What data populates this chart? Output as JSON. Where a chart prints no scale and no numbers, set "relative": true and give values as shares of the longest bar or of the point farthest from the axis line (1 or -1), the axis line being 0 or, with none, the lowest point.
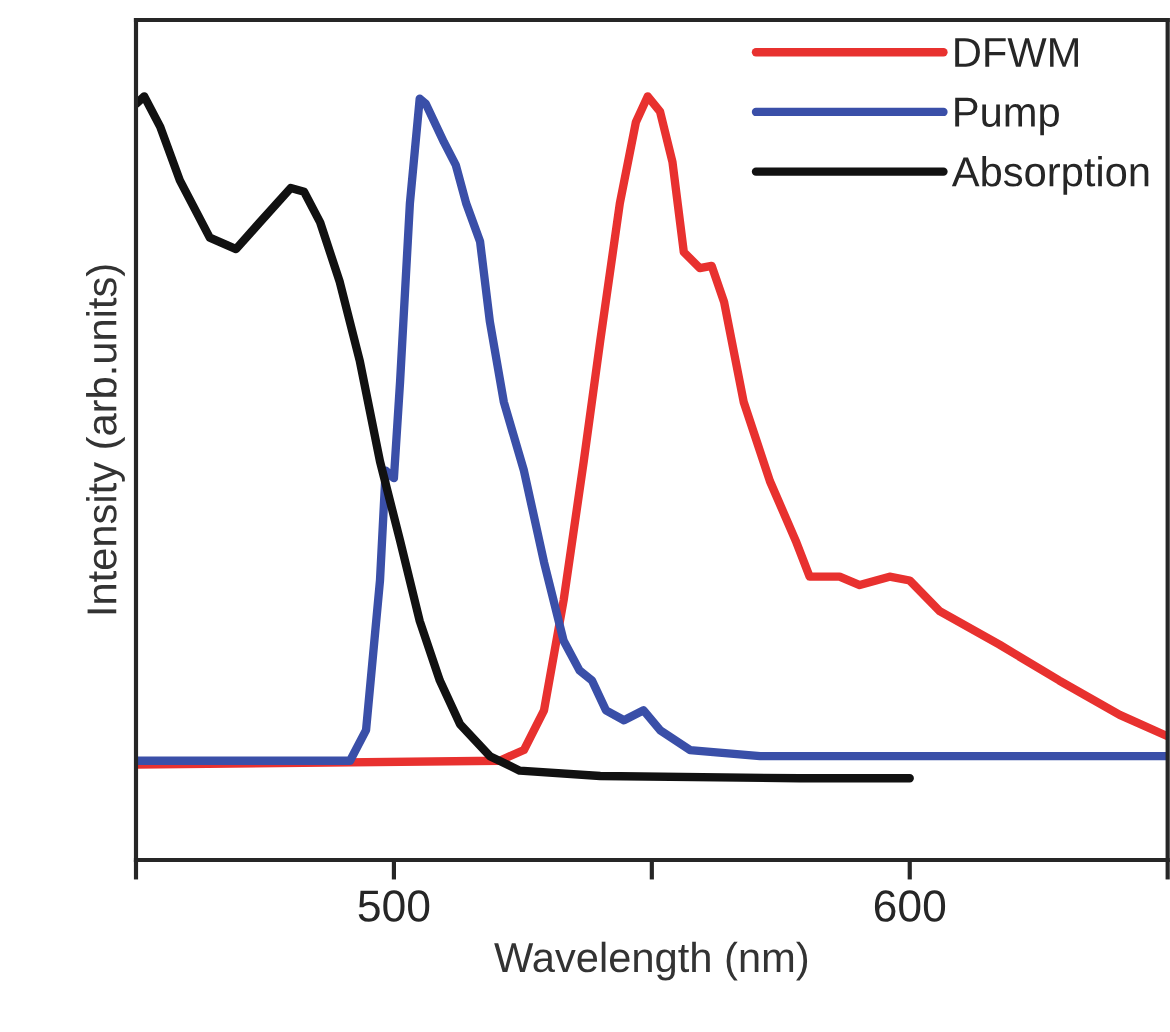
{
  "chart_data": {
    "type": "line",
    "xlabel": "Wavelength (nm)",
    "ylabel": "Intensity (arb.units)",
    "relative": true,
    "xlim": [
      450,
      650
    ],
    "xticks": [
      {
        "value": 450,
        "label": null
      },
      500,
      {
        "value": 550,
        "label": null
      },
      600,
      {
        "value": 650,
        "label": null
      }
    ],
    "legend": "top right",
    "grid": false,
    "line_style": "solid",
    "series": [
      {
        "name": "DFWM",
        "color": "#e8312f",
        "x": [
          450,
          520.5,
          525.2,
          529.1,
          532.9,
          536.8,
          540,
          543.8,
          546.9,
          549.2,
          551.6,
          554,
          556.2,
          559.3,
          561.6,
          564,
          567.8,
          572.9,
          577.9,
          580.6,
          586.4,
          590.3,
          596.1,
          600,
          605.8,
          617.4,
          629,
          640.7,
          650
        ],
        "values": [
          0.125,
          0.13,
          0.144,
          0.196,
          0.34,
          0.522,
          0.68,
          0.86,
          0.966,
          1.0,
          0.98,
          0.914,
          0.796,
          0.775,
          0.778,
          0.731,
          0.6,
          0.496,
          0.418,
          0.371,
          0.371,
          0.36,
          0.371,
          0.366,
          0.326,
          0.282,
          0.235,
          0.19,
          0.162
        ]
      },
      {
        "name": "Pump",
        "color": "#3a4fa8",
        "x": [
          450,
          491.5,
          494.6,
          497.3,
          498.4,
          500,
          501.2,
          503.1,
          505,
          506.2,
          509.7,
          512,
          514,
          516.7,
          518.6,
          521.3,
          525.2,
          529.1,
          532.9,
          536,
          538.4,
          541.1,
          544.6,
          548.4,
          551.6,
          557.4,
          571,
          650
        ],
        "values": [
          0.13,
          0.13,
          0.17,
          0.366,
          0.51,
          0.5,
          0.627,
          0.86,
          0.997,
          0.99,
          0.94,
          0.91,
          0.86,
          0.81,
          0.705,
          0.6,
          0.51,
          0.39,
          0.287,
          0.248,
          0.235,
          0.196,
          0.183,
          0.196,
          0.17,
          0.144,
          0.136,
          0.136
        ]
      },
      {
        "name": "Absorption",
        "color": "#111111",
        "x": [
          450,
          451.6,
          454.7,
          458.5,
          464.3,
          469.4,
          474,
          480,
          482.6,
          485.7,
          489.5,
          493.4,
          497.3,
          501.2,
          505,
          508.9,
          512.8,
          518.6,
          524.4,
          540,
          578.7,
          600
        ],
        "values": [
          0.99,
          1.0,
          0.96,
          0.89,
          0.815,
          0.8,
          0.835,
          0.88,
          0.875,
          0.835,
          0.757,
          0.653,
          0.522,
          0.418,
          0.313,
          0.235,
          0.178,
          0.136,
          0.117,
          0.11,
          0.107,
          0.107
        ]
      }
    ]
  }
}
